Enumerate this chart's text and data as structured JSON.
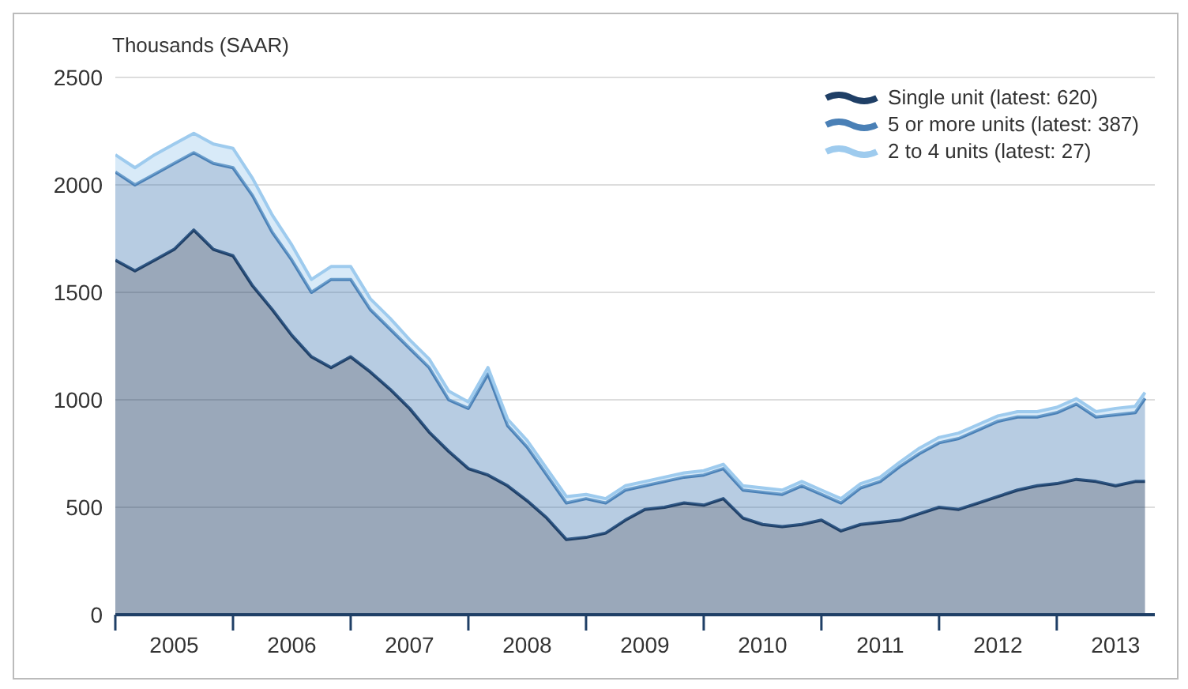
{
  "chart_data": {
    "type": "area",
    "stacked": true,
    "ylabel": "Thousands (SAAR)",
    "x": [
      "2005-01",
      "2005-03",
      "2005-05",
      "2005-07",
      "2005-09",
      "2005-11",
      "2006-01",
      "2006-03",
      "2006-05",
      "2006-07",
      "2006-09",
      "2006-11",
      "2007-01",
      "2007-03",
      "2007-05",
      "2007-07",
      "2007-09",
      "2007-11",
      "2008-01",
      "2008-03",
      "2008-05",
      "2008-07",
      "2008-09",
      "2008-11",
      "2009-01",
      "2009-03",
      "2009-05",
      "2009-07",
      "2009-09",
      "2009-11",
      "2010-01",
      "2010-03",
      "2010-05",
      "2010-07",
      "2010-09",
      "2010-11",
      "2011-01",
      "2011-03",
      "2011-05",
      "2011-07",
      "2011-09",
      "2011-11",
      "2012-01",
      "2012-03",
      "2012-05",
      "2012-07",
      "2012-09",
      "2012-11",
      "2013-01",
      "2013-03",
      "2013-05",
      "2013-07",
      "2013-09",
      "2013-10"
    ],
    "series": [
      {
        "name": "Single unit (latest: 620)",
        "color": "#1f3f66",
        "values": [
          1650,
          1600,
          1650,
          1700,
          1790,
          1700,
          1670,
          1530,
          1420,
          1300,
          1200,
          1150,
          1200,
          1130,
          1050,
          960,
          850,
          760,
          680,
          650,
          600,
          530,
          450,
          350,
          360,
          380,
          440,
          490,
          500,
          520,
          510,
          540,
          450,
          420,
          410,
          420,
          440,
          390,
          420,
          430,
          440,
          470,
          500,
          490,
          520,
          550,
          580,
          600,
          610,
          630,
          620,
          600,
          620,
          620
        ]
      },
      {
        "name": "5 or more units (latest: 387)",
        "color": "#4a80b6",
        "values": [
          410,
          400,
          400,
          400,
          360,
          400,
          410,
          420,
          360,
          350,
          300,
          410,
          360,
          290,
          280,
          280,
          300,
          240,
          280,
          470,
          280,
          250,
          200,
          170,
          180,
          140,
          140,
          110,
          120,
          120,
          140,
          140,
          130,
          150,
          150,
          180,
          120,
          130,
          170,
          190,
          250,
          280,
          300,
          330,
          340,
          350,
          340,
          320,
          330,
          350,
          300,
          330,
          320,
          387
        ]
      },
      {
        "name": "2 to 4 units (latest: 27)",
        "color": "#9ecbee",
        "values": [
          80,
          80,
          90,
          90,
          90,
          90,
          90,
          80,
          80,
          70,
          60,
          60,
          60,
          50,
          50,
          40,
          40,
          40,
          30,
          30,
          30,
          30,
          30,
          30,
          20,
          20,
          20,
          20,
          20,
          20,
          20,
          20,
          20,
          20,
          20,
          20,
          20,
          20,
          20,
          20,
          20,
          25,
          25,
          25,
          25,
          25,
          25,
          25,
          25,
          25,
          25,
          30,
          30,
          27
        ]
      }
    ],
    "xlim": [
      "2005-01",
      "2013-11"
    ],
    "xticks": [
      {
        "value": "2005-01",
        "label": null
      },
      {
        "value": "2005-07",
        "label": "2005"
      },
      {
        "value": "2006-01",
        "label": null
      },
      {
        "value": "2006-07",
        "label": "2006"
      },
      {
        "value": "2007-01",
        "label": null
      },
      {
        "value": "2007-07",
        "label": "2007"
      },
      {
        "value": "2008-01",
        "label": null
      },
      {
        "value": "2008-07",
        "label": "2008"
      },
      {
        "value": "2009-01",
        "label": null
      },
      {
        "value": "2009-07",
        "label": "2009"
      },
      {
        "value": "2010-01",
        "label": null
      },
      {
        "value": "2010-07",
        "label": "2010"
      },
      {
        "value": "2011-01",
        "label": null
      },
      {
        "value": "2011-07",
        "label": "2011"
      },
      {
        "value": "2012-01",
        "label": null
      },
      {
        "value": "2012-07",
        "label": "2012"
      },
      {
        "value": "2013-01",
        "label": null
      },
      {
        "value": "2013-07",
        "label": "2013"
      }
    ],
    "ylim": [
      0,
      2500
    ],
    "yticks": [
      0,
      500,
      1000,
      1500,
      2000,
      2500
    ],
    "grid": "y",
    "legend": "top right"
  }
}
